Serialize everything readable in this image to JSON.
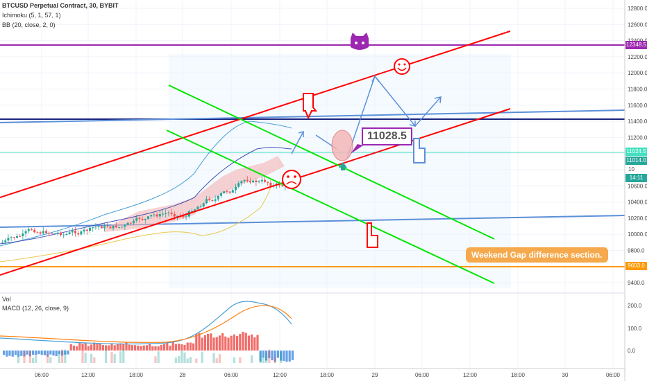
{
  "legend": {
    "title": "BTCUSD Perpetual Contract, 30, BYBIT",
    "ichimoku": "Ichimoku (5, 1, 57, 1)",
    "bb": "BB (20, close, 2, 0)",
    "vol": "Vol",
    "macd": "MACD (12, 26, close, 9)"
  },
  "price_axis": [
    "12800.0",
    "12600.0",
    "12400.0",
    "12200.0",
    "12000.0",
    "11800.0",
    "11600.0",
    "11400.0",
    "11200.0",
    "11000.0",
    "10800.0",
    "10600.0",
    "10400.0",
    "10200.0",
    "10000.0",
    "9800.0",
    "9600.0",
    "9400.0"
  ],
  "price_tags": {
    "resistance": "12348.5",
    "last": "11024.5",
    "current": "11014.0",
    "countdown": "14:11",
    "gap": "9603.0",
    "partial": "10"
  },
  "macd_axis": [
    "200.0",
    "100.0",
    "0.0"
  ],
  "time_axis": [
    "06:00",
    "12:00",
    "18:00",
    "28",
    "06:00",
    "12:00",
    "18:00",
    "29",
    "06:00",
    "12:00",
    "18:00",
    "30",
    "06:00"
  ],
  "callout_price": "11028.5",
  "gap_note": "Weekend Gap difference section.",
  "colors": {
    "up": "#26a69a",
    "down": "#ef5350",
    "red_channel": "#ff0000",
    "green_channel": "#00e600",
    "resistance": "#9c27b0",
    "gap": "#ff9800",
    "support": "#1a237e"
  },
  "icons": [
    "cat-icon",
    "smiley-happy-icon",
    "smiley-sad-icon",
    "hand-pointing-down-icon",
    "hand-pointing-up-icon"
  ]
}
